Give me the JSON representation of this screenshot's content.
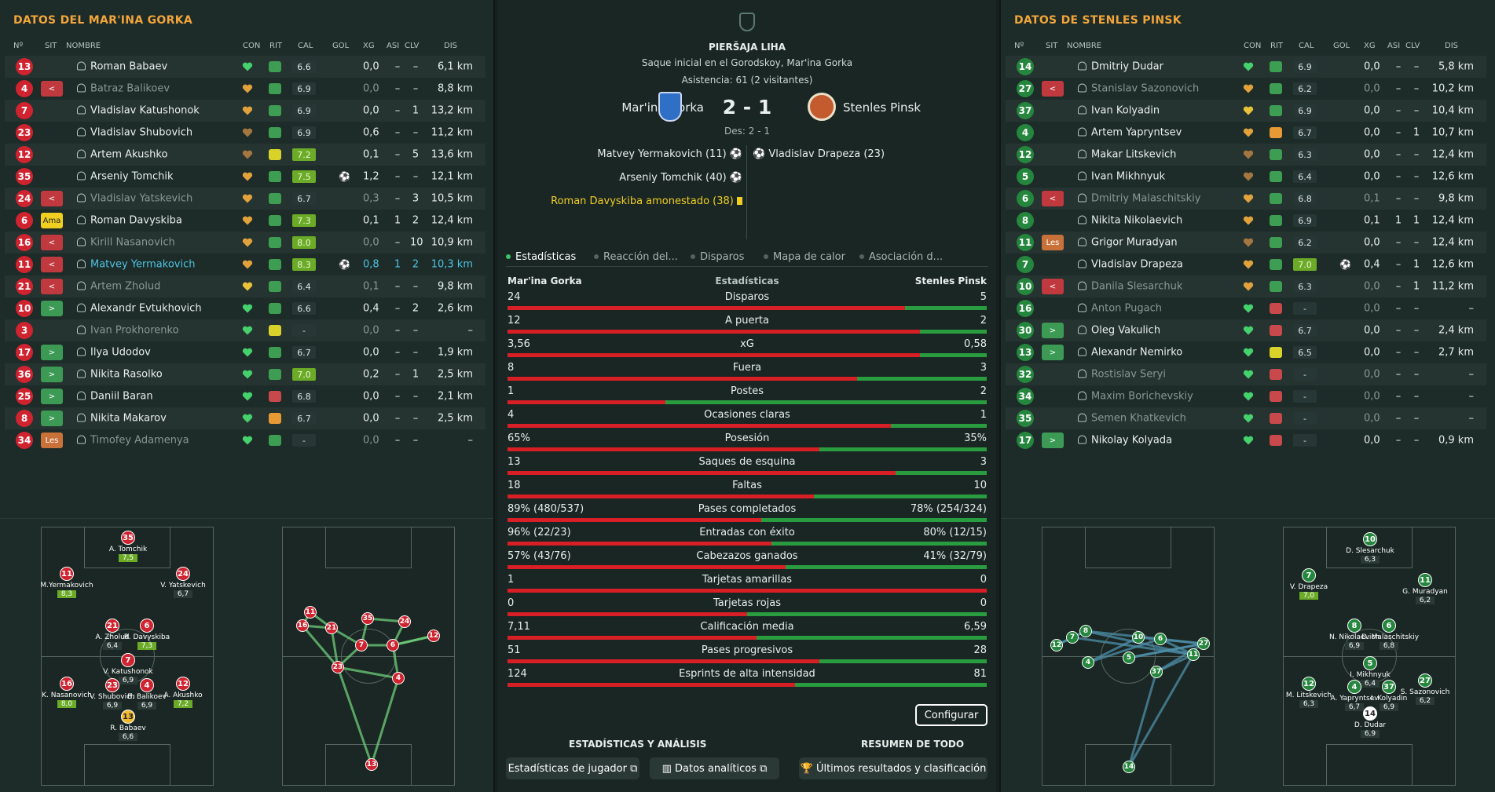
{
  "left": {
    "title": "DATOS DEL MAR'INA GORKA",
    "headers": [
      "Nº",
      "SIT",
      "NOMBRE",
      "CON",
      "RIT",
      "CAL",
      "GOL",
      "XG",
      "ASI",
      "CLV",
      "DIS"
    ],
    "players": [
      {
        "n": "13",
        "sit": "",
        "name": "Roman Babaev",
        "con": "#45d16b",
        "rit": "g",
        "cal": "6.6",
        "hi": false,
        "gol": "",
        "xg": "0,0",
        "asi": "–",
        "clv": "–",
        "dis": "6,1 km",
        "dim": false,
        "hl": false,
        "nc": "red"
      },
      {
        "n": "4",
        "sit": "<",
        "name": "Batraz Balikoev",
        "con": "#e1a23c",
        "rit": "gg",
        "cal": "6.9",
        "hi": false,
        "gol": "",
        "xg": "0,0",
        "asi": "–",
        "clv": "–",
        "dis": "8,8 km",
        "dim": true,
        "hl": false,
        "nc": "red"
      },
      {
        "n": "7",
        "sit": "",
        "name": "Vladislav Katushonok",
        "con": "#e1a23c",
        "rit": "gg",
        "cal": "6.9",
        "hi": false,
        "gol": "",
        "xg": "0,0",
        "asi": "–",
        "clv": "1",
        "dis": "13,2 km",
        "dim": false,
        "hl": false,
        "nc": "red"
      },
      {
        "n": "23",
        "sit": "",
        "name": "Vladislav Shubovich",
        "con": "#a3773f",
        "rit": "gg",
        "cal": "6.9",
        "hi": false,
        "gol": "",
        "xg": "0,6",
        "asi": "–",
        "clv": "–",
        "dis": "11,2 km",
        "dim": false,
        "hl": false,
        "nc": "red"
      },
      {
        "n": "12",
        "sit": "",
        "name": "Artem Akushko",
        "con": "#a3773f",
        "rit": "y",
        "cal": "7.2",
        "hi": true,
        "gol": "",
        "xg": "0,1",
        "asi": "–",
        "clv": "5",
        "dis": "13,6 km",
        "dim": false,
        "hl": false,
        "nc": "red"
      },
      {
        "n": "35",
        "sit": "",
        "name": "Arseniy Tomchik",
        "con": "#e1a23c",
        "rit": "gg",
        "cal": "7.5",
        "hi": true,
        "gol": "⚽",
        "xg": "1,2",
        "asi": "–",
        "clv": "–",
        "dis": "12,1 km",
        "dim": false,
        "hl": false,
        "nc": "red"
      },
      {
        "n": "24",
        "sit": "<",
        "name": "Vladislav Yatskevich",
        "con": "#e1a23c",
        "rit": "gg",
        "cal": "6.7",
        "hi": false,
        "gol": "",
        "xg": "0,3",
        "asi": "–",
        "clv": "3",
        "dis": "10,5 km",
        "dim": true,
        "hl": false,
        "nc": "red"
      },
      {
        "n": "6",
        "sit": "Ama",
        "name": "Roman Davyskiba",
        "con": "#e1a23c",
        "rit": "gg",
        "cal": "7.3",
        "hi": true,
        "gol": "",
        "xg": "0,1",
        "asi": "1",
        "clv": "2",
        "dis": "12,4 km",
        "dim": false,
        "hl": false,
        "nc": "red"
      },
      {
        "n": "16",
        "sit": "<",
        "name": "Kirill Nasanovich",
        "con": "#e1a23c",
        "rit": "gg",
        "cal": "8.0",
        "hi": true,
        "gol": "",
        "xg": "0,0",
        "asi": "–",
        "clv": "10",
        "dis": "10,9 km",
        "dim": true,
        "hl": false,
        "nc": "red"
      },
      {
        "n": "11",
        "sit": "<",
        "name": "Matvey Yermakovich",
        "con": "#e1a23c",
        "rit": "gg",
        "cal": "8.3",
        "hi": true,
        "gol": "⚽",
        "xg": "0,8",
        "asi": "1",
        "clv": "2",
        "dis": "10,3 km",
        "dim": false,
        "hl": true,
        "nc": "red"
      },
      {
        "n": "21",
        "sit": "<",
        "name": "Artem Zholud",
        "con": "#e9c23a",
        "rit": "g",
        "cal": "6.4",
        "hi": false,
        "gol": "",
        "xg": "0,1",
        "asi": "–",
        "clv": "–",
        "dis": "9,8 km",
        "dim": true,
        "hl": false,
        "nc": "red"
      },
      {
        "n": "10",
        "sit": ">",
        "name": "Alexandr Evtukhovich",
        "con": "#45d16b",
        "rit": "g",
        "cal": "6.6",
        "hi": false,
        "gol": "",
        "xg": "0,4",
        "asi": "–",
        "clv": "2",
        "dis": "2,6 km",
        "dim": false,
        "hl": false,
        "nc": "red"
      },
      {
        "n": "3",
        "sit": "",
        "name": "Ivan Prokhorenko",
        "con": "#45d16b",
        "rit": "y",
        "cal": "-",
        "hi": false,
        "gol": "",
        "xg": "0,0",
        "asi": "–",
        "clv": "–",
        "dis": "–",
        "dim": true,
        "hl": false,
        "nc": "red"
      },
      {
        "n": "17",
        "sit": ">",
        "name": "Ilya Udodov",
        "con": "#45d16b",
        "rit": "g",
        "cal": "6.7",
        "hi": false,
        "gol": "",
        "xg": "0,0",
        "asi": "–",
        "clv": "–",
        "dis": "1,9 km",
        "dim": false,
        "hl": false,
        "nc": "red"
      },
      {
        "n": "36",
        "sit": ">",
        "name": "Nikita Rasolko",
        "con": "#45d16b",
        "rit": "g",
        "cal": "7.0",
        "hi": true,
        "gol": "",
        "xg": "0,2",
        "asi": "–",
        "clv": "1",
        "dis": "2,5 km",
        "dim": false,
        "hl": false,
        "nc": "red"
      },
      {
        "n": "25",
        "sit": ">",
        "name": "Daniil Baran",
        "con": "#45d16b",
        "rit": "r",
        "cal": "6.8",
        "hi": false,
        "gol": "",
        "xg": "0,0",
        "asi": "–",
        "clv": "–",
        "dis": "2,1 km",
        "dim": false,
        "hl": false,
        "nc": "red"
      },
      {
        "n": "8",
        "sit": ">",
        "name": "Nikita Makarov",
        "con": "#45d16b",
        "rit": "o",
        "cal": "6.7",
        "hi": false,
        "gol": "",
        "xg": "0,0",
        "asi": "–",
        "clv": "–",
        "dis": "2,5 km",
        "dim": false,
        "hl": false,
        "nc": "red"
      },
      {
        "n": "34",
        "sit": "Les",
        "name": "Timofey Adamenya",
        "con": "#45d16b",
        "rit": "g",
        "cal": "-",
        "hi": false,
        "gol": "",
        "xg": "0,0",
        "asi": "–",
        "clv": "–",
        "dis": "–",
        "dim": true,
        "hl": false,
        "nc": "red"
      }
    ],
    "formation": [
      {
        "n": "35",
        "name": "A. Tomchik",
        "r": "7,5",
        "hi": true
      },
      {
        "n": "11",
        "name": "M.Yermakovich",
        "r": "8,3",
        "hi": true
      },
      {
        "n": "24",
        "name": "V. Yatskevich",
        "r": "6,7",
        "hi": false
      },
      {
        "n": "21",
        "name": "A. Zholud",
        "r": "6,4",
        "hi": false
      },
      {
        "n": "6",
        "name": "R. Davyskiba",
        "r": "7,3",
        "hi": true
      },
      {
        "n": "7",
        "name": "V. Katushonok",
        "r": "6,9",
        "hi": false
      },
      {
        "n": "16",
        "name": "K. Nasanovich",
        "r": "8,0",
        "hi": true
      },
      {
        "n": "23",
        "name": "V. Shubovich",
        "r": "6,9",
        "hi": false
      },
      {
        "n": "4",
        "name": "B. Balikoev",
        "r": "6,9",
        "hi": false
      },
      {
        "n": "12",
        "name": "A. Akushko",
        "r": "7,2",
        "hi": true
      },
      {
        "n": "13",
        "name": "R. Babaev",
        "r": "6,6",
        "hi": false
      }
    ],
    "passmap": [
      "11",
      "16",
      "21",
      "35",
      "24",
      "12",
      "7",
      "6",
      "23",
      "4",
      "13"
    ]
  },
  "center": {
    "competition": "PIERŠAJA LIHA",
    "kickoff": "Saque inicial en el Gorodskoy, Mar'ina Gorka",
    "attendance": "Asistencia: 61 (2 visitantes)",
    "home": "Mar'ina Gorka",
    "away": "Stenles Pinsk",
    "score": "2 - 1",
    "des": "Des: 2 - 1",
    "events_home": [
      "Matvey Yermakovich (11)",
      "Arseniy Tomchik (40)",
      "Roman Davyskiba amonestado (38)"
    ],
    "events_away": [
      "Vladislav Drapeza (23)"
    ],
    "tabs": [
      "Estadísticas",
      "Reacción del...",
      "Disparos",
      "Mapa de calor",
      "Asociación d..."
    ],
    "stats_header": "Estadísticas",
    "stats": [
      {
        "l": "24",
        "label": "Disparos",
        "r": "5",
        "p": 0.83
      },
      {
        "l": "12",
        "label": "A puerta",
        "r": "2",
        "p": 0.86
      },
      {
        "l": "3,56",
        "label": "xG",
        "r": "0,58",
        "p": 0.86
      },
      {
        "l": "8",
        "label": "Fuera",
        "r": "3",
        "p": 0.73
      },
      {
        "l": "1",
        "label": "Postes",
        "r": "2",
        "p": 0.33
      },
      {
        "l": "4",
        "label": "Ocasiones claras",
        "r": "1",
        "p": 0.8
      },
      {
        "l": "65%",
        "label": "Posesión",
        "r": "35%",
        "p": 0.65
      },
      {
        "l": "13",
        "label": "Saques de esquina",
        "r": "3",
        "p": 0.81
      },
      {
        "l": "18",
        "label": "Faltas",
        "r": "10",
        "p": 0.64
      },
      {
        "l": "89% (480/537)",
        "label": "Pases completados",
        "r": "78% (254/324)",
        "p": 0.53
      },
      {
        "l": "96% (22/23)",
        "label": "Entradas con éxito",
        "r": "80% (12/15)",
        "p": 0.55
      },
      {
        "l": "57% (43/76)",
        "label": "Cabezazos ganados",
        "r": "41% (32/79)",
        "p": 0.58
      },
      {
        "l": "1",
        "label": "Tarjetas amarillas",
        "r": "0",
        "p": 1.0
      },
      {
        "l": "0",
        "label": "Tarjetas rojas",
        "r": "0",
        "p": 0.5
      },
      {
        "l": "7,11",
        "label": "Calificación media",
        "r": "6,59",
        "p": 0.52
      },
      {
        "l": "51",
        "label": "Pases progresivos",
        "r": "28",
        "p": 0.65
      },
      {
        "l": "124",
        "label": "Esprints de alta intensidad",
        "r": "81",
        "p": 0.6
      }
    ],
    "configure": "Configurar",
    "sect_left": "ESTADÍSTICAS Y ANÁLISIS",
    "sect_right": "RESUMEN DE TODO",
    "btn1": "Estadísticas de jugador",
    "btn2": "Datos analíticos",
    "btn3": "Últimos resultados y clasificación"
  },
  "right": {
    "title": "DATOS DE STENLES PINSK",
    "headers": [
      "Nº",
      "SIT",
      "NOMBRE",
      "CON",
      "RIT",
      "CAL",
      "GOL",
      "XG",
      "ASI",
      "CLV",
      "DIS"
    ],
    "players": [
      {
        "n": "14",
        "sit": "",
        "name": "Dmitriy Dudar",
        "con": "#45d16b",
        "rit": "gg",
        "cal": "6.9",
        "hi": false,
        "gol": "",
        "xg": "0,0",
        "asi": "–",
        "clv": "–",
        "dis": "5,8 km",
        "dim": false,
        "hl": false,
        "nc": "green"
      },
      {
        "n": "27",
        "sit": "<",
        "name": "Stanislav Sazonovich",
        "con": "#e1a23c",
        "rit": "gg",
        "cal": "6.2",
        "hi": false,
        "gol": "",
        "xg": "0,0",
        "asi": "–",
        "clv": "–",
        "dis": "10,2 km",
        "dim": true,
        "hl": false,
        "nc": "green"
      },
      {
        "n": "37",
        "sit": "",
        "name": "Ivan Kolyadin",
        "con": "#e9c23a",
        "rit": "gg",
        "cal": "6.9",
        "hi": false,
        "gol": "",
        "xg": "0,0",
        "asi": "–",
        "clv": "–",
        "dis": "10,4 km",
        "dim": false,
        "hl": false,
        "nc": "green"
      },
      {
        "n": "4",
        "sit": "",
        "name": "Artem Yapryntsev",
        "con": "#e1a23c",
        "rit": "o",
        "cal": "6.7",
        "hi": false,
        "gol": "",
        "xg": "0,0",
        "asi": "–",
        "clv": "1",
        "dis": "10,7 km",
        "dim": false,
        "hl": false,
        "nc": "green"
      },
      {
        "n": "12",
        "sit": "",
        "name": "Makar Litskevich",
        "con": "#a3773f",
        "rit": "gg",
        "cal": "6.3",
        "hi": false,
        "gol": "",
        "xg": "0,0",
        "asi": "–",
        "clv": "–",
        "dis": "12,4 km",
        "dim": false,
        "hl": false,
        "nc": "green"
      },
      {
        "n": "5",
        "sit": "",
        "name": "Ivan Mikhnyuk",
        "con": "#a3773f",
        "rit": "gg",
        "cal": "6.4",
        "hi": false,
        "gol": "",
        "xg": "0,0",
        "asi": "–",
        "clv": "–",
        "dis": "12,6 km",
        "dim": false,
        "hl": false,
        "nc": "green"
      },
      {
        "n": "6",
        "sit": "<",
        "name": "Dmitriy Malaschitskiy",
        "con": "#e1a23c",
        "rit": "gg",
        "cal": "6.8",
        "hi": false,
        "gol": "",
        "xg": "0,1",
        "asi": "–",
        "clv": "–",
        "dis": "9,8 km",
        "dim": true,
        "hl": false,
        "nc": "green"
      },
      {
        "n": "8",
        "sit": "",
        "name": "Nikita Nikolaevich",
        "con": "#e1a23c",
        "rit": "gg",
        "cal": "6.9",
        "hi": false,
        "gol": "",
        "xg": "0,1",
        "asi": "1",
        "clv": "1",
        "dis": "12,4 km",
        "dim": false,
        "hl": false,
        "nc": "green"
      },
      {
        "n": "11",
        "sit": "Les",
        "name": "Grigor Muradyan",
        "con": "#a3773f",
        "rit": "gg",
        "cal": "6.2",
        "hi": false,
        "gol": "",
        "xg": "0,0",
        "asi": "–",
        "clv": "–",
        "dis": "12,4 km",
        "dim": false,
        "hl": false,
        "nc": "green"
      },
      {
        "n": "7",
        "sit": "",
        "name": "Vladislav Drapeza",
        "con": "#e1a23c",
        "rit": "gg",
        "cal": "7.0",
        "hi": true,
        "gol": "⚽",
        "xg": "0,4",
        "asi": "–",
        "clv": "1",
        "dis": "12,6 km",
        "dim": false,
        "hl": false,
        "nc": "green"
      },
      {
        "n": "10",
        "sit": "<",
        "name": "Danila Slesarchuk",
        "con": "#e1a23c",
        "rit": "gg",
        "cal": "6.3",
        "hi": false,
        "gol": "",
        "xg": "0,0",
        "asi": "–",
        "clv": "1",
        "dis": "11,2 km",
        "dim": true,
        "hl": false,
        "nc": "green"
      },
      {
        "n": "16",
        "sit": "",
        "name": "Anton Pugach",
        "con": "#45d16b",
        "rit": "r",
        "cal": "-",
        "hi": false,
        "gol": "",
        "xg": "0,0",
        "asi": "–",
        "clv": "–",
        "dis": "–",
        "dim": true,
        "hl": false,
        "nc": "green"
      },
      {
        "n": "30",
        "sit": ">",
        "name": "Oleg Vakulich",
        "con": "#45d16b",
        "rit": "r",
        "cal": "6.7",
        "hi": false,
        "gol": "",
        "xg": "0,0",
        "asi": "–",
        "clv": "–",
        "dis": "2,4 km",
        "dim": false,
        "hl": false,
        "nc": "green"
      },
      {
        "n": "13",
        "sit": ">",
        "name": "Alexandr Nemirko",
        "con": "#45d16b",
        "rit": "y",
        "cal": "6.5",
        "hi": false,
        "gol": "",
        "xg": "0,0",
        "asi": "–",
        "clv": "–",
        "dis": "2,7 km",
        "dim": false,
        "hl": false,
        "nc": "green"
      },
      {
        "n": "32",
        "sit": "",
        "name": "Rostislav Seryi",
        "con": "#45d16b",
        "rit": "r",
        "cal": "-",
        "hi": false,
        "gol": "",
        "xg": "0,0",
        "asi": "–",
        "clv": "–",
        "dis": "–",
        "dim": true,
        "hl": false,
        "nc": "green"
      },
      {
        "n": "34",
        "sit": "",
        "name": "Maxim Borichevskiy",
        "con": "#45d16b",
        "rit": "r",
        "cal": "-",
        "hi": false,
        "gol": "",
        "xg": "0,0",
        "asi": "–",
        "clv": "–",
        "dis": "–",
        "dim": true,
        "hl": false,
        "nc": "green"
      },
      {
        "n": "35",
        "sit": "",
        "name": "Semen Khatkevich",
        "con": "#45d16b",
        "rit": "r",
        "cal": "-",
        "hi": false,
        "gol": "",
        "xg": "0,0",
        "asi": "–",
        "clv": "–",
        "dis": "–",
        "dim": true,
        "hl": false,
        "nc": "green"
      },
      {
        "n": "17",
        "sit": ">",
        "name": "Nikolay Kolyada",
        "con": "#45d16b",
        "rit": "r",
        "cal": "-",
        "hi": false,
        "gol": "",
        "xg": "0,0",
        "asi": "–",
        "clv": "–",
        "dis": "0,9 km",
        "dim": false,
        "hl": false,
        "nc": "green"
      }
    ],
    "formation": [
      {
        "n": "10",
        "name": "D. Slesarchuk",
        "r": "6,3",
        "hi": false
      },
      {
        "n": "7",
        "name": "V. Drapeza",
        "r": "7,0",
        "hi": true
      },
      {
        "n": "11",
        "name": "G. Muradyan",
        "r": "6,2",
        "hi": false
      },
      {
        "n": "8",
        "name": "N. Nikolaevich",
        "r": "6,9",
        "hi": false
      },
      {
        "n": "6",
        "name": "D. Malaschitskiy",
        "r": "6,8",
        "hi": false
      },
      {
        "n": "5",
        "name": "I. Mikhnyuk",
        "r": "6,4",
        "hi": false
      },
      {
        "n": "12",
        "name": "M. Litskevich",
        "r": "6,3",
        "hi": false
      },
      {
        "n": "4",
        "name": "A. Yapryntsev",
        "r": "6,7",
        "hi": false
      },
      {
        "n": "37",
        "name": "I. Kolyadin",
        "r": "6,9",
        "hi": false
      },
      {
        "n": "27",
        "name": "S. Sazonovich",
        "r": "6,2",
        "hi": false
      },
      {
        "n": "14",
        "name": "D. Dudar",
        "r": "6,9",
        "hi": false
      }
    ],
    "passmap": [
      "12",
      "7",
      "8",
      "4",
      "10",
      "5",
      "6",
      "27",
      "11",
      "37",
      "14"
    ]
  }
}
